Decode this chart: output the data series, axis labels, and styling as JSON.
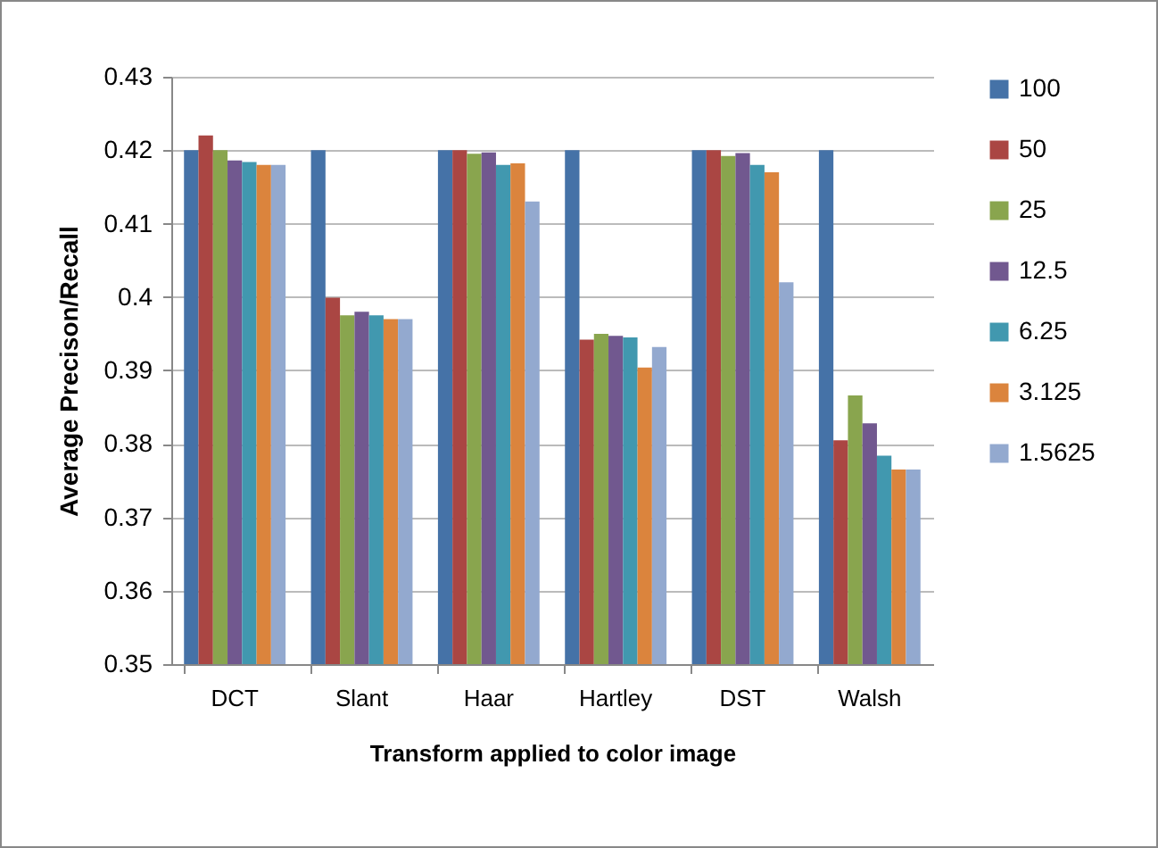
{
  "chart_data": {
    "type": "bar",
    "xlabel": "Transform applied to color image",
    "ylabel": "Average Precison/Recall",
    "categories": [
      "DCT",
      "Slant",
      "Haar",
      "Hartley",
      "DST",
      "Walsh"
    ],
    "series": [
      {
        "name": "100",
        "color": "#4572a7",
        "values": [
          0.42,
          0.42,
          0.42,
          0.42,
          0.42,
          0.42
        ]
      },
      {
        "name": "50",
        "color": "#aa4643",
        "values": [
          0.422,
          0.3999,
          0.42,
          0.3942,
          0.42,
          0.3805
        ]
      },
      {
        "name": "25",
        "color": "#89a54e",
        "values": [
          0.42,
          0.3975,
          0.4195,
          0.395,
          0.4192,
          0.3866
        ]
      },
      {
        "name": "12.5",
        "color": "#71588f",
        "values": [
          0.4186,
          0.398,
          0.4197,
          0.3947,
          0.4196,
          0.3828
        ]
      },
      {
        "name": "6.25",
        "color": "#4198af",
        "values": [
          0.4184,
          0.3975,
          0.418,
          0.3945,
          0.418,
          0.3784
        ]
      },
      {
        "name": "3.125",
        "color": "#db843d",
        "values": [
          0.418,
          0.397,
          0.4182,
          0.3904,
          0.417,
          0.3765
        ]
      },
      {
        "name": "1.5625",
        "color": "#93a9cf",
        "values": [
          0.418,
          0.397,
          0.413,
          0.3932,
          0.402,
          0.3765
        ]
      }
    ],
    "ylim": [
      0.35,
      0.43
    ],
    "yticks": [
      0.35,
      0.36,
      0.37,
      0.38,
      0.39,
      0.4,
      0.41,
      0.42,
      0.43
    ],
    "grid": "y",
    "legend": "right"
  }
}
